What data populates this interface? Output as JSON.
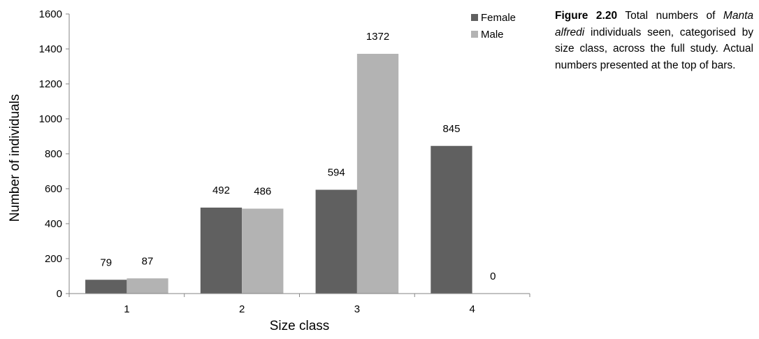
{
  "chart_data": {
    "type": "bar",
    "categories": [
      "1",
      "2",
      "3",
      "4"
    ],
    "series": [
      {
        "name": "Female",
        "values": [
          79,
          492,
          594,
          845
        ],
        "color": "#606060"
      },
      {
        "name": "Male",
        "values": [
          87,
          486,
          1372,
          0
        ],
        "color": "#b3b3b3"
      }
    ],
    "data_labels": [
      [
        "79",
        "492",
        "594",
        "845"
      ],
      [
        "87",
        "486",
        "1372",
        "0"
      ]
    ],
    "xlabel": "Size class",
    "ylabel": "Number of individuals",
    "ylim": [
      0,
      1600
    ],
    "yticks": [
      0,
      200,
      400,
      600,
      800,
      1000,
      1200,
      1400,
      1600
    ],
    "grid": false,
    "legend": "top-right"
  },
  "caption": {
    "figure_number": "Figure 2.20",
    "text_before_species": " Total numbers of ",
    "species": "Manta alfredi",
    "text_after_species": " individuals seen, categorised by size class, across the full study. Actual numbers presented at the top of bars."
  }
}
